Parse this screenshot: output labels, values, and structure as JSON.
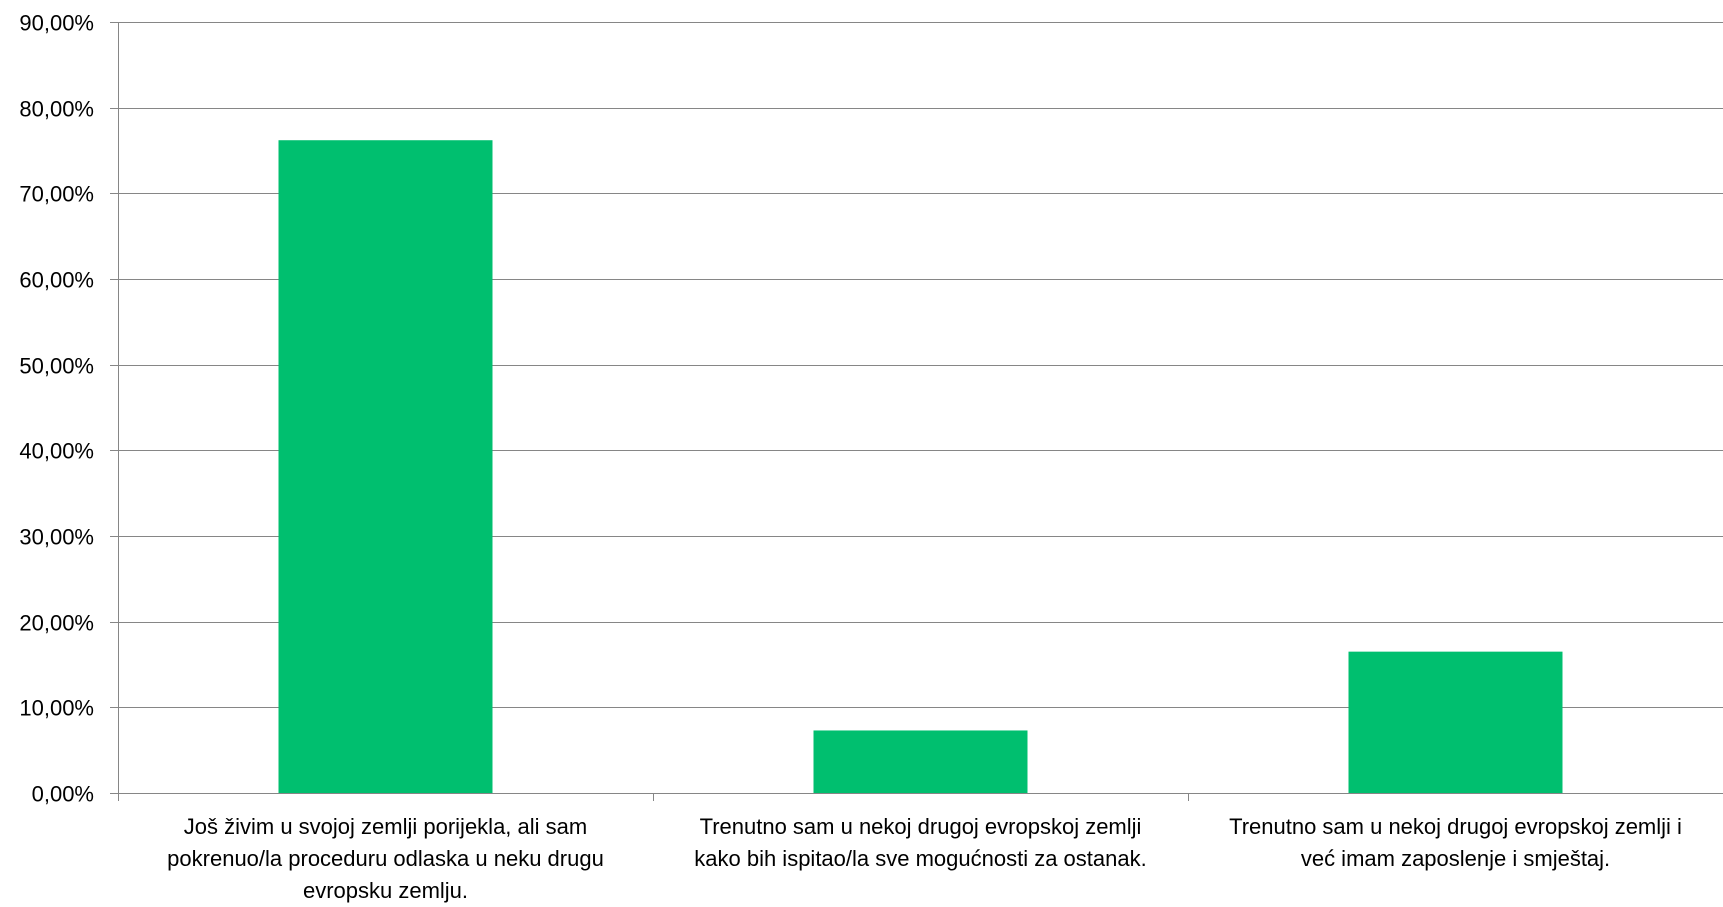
{
  "chart_data": {
    "type": "bar",
    "categories": [
      [
        "Još živim u svojoj zemlji porijekla, ali sam",
        "pokrenuo/la proceduru odlaska u neku drugu",
        "evropsku zemlju."
      ],
      [
        "Trenutno sam u nekoj drugoj evropskoj zemlji",
        "kako bih ispitao/la sve mogućnosti za ostanak."
      ],
      [
        "Trenutno sam u nekoj drugoj evropskoj zemlji i",
        "već imam zaposlenje i smještaj."
      ]
    ],
    "values": [
      76.2,
      7.3,
      16.5
    ],
    "ylim": [
      0,
      90
    ],
    "yticks": [
      "0,00%",
      "10,00%",
      "20,00%",
      "30,00%",
      "40,00%",
      "50,00%",
      "60,00%",
      "70,00%",
      "80,00%",
      "90,00%"
    ],
    "title": "",
    "xlabel": "",
    "ylabel": "",
    "grid": true,
    "colors": {
      "bar": "#00BF6F",
      "grid": "#868686",
      "axis": "#868686",
      "text": "#000000"
    }
  }
}
